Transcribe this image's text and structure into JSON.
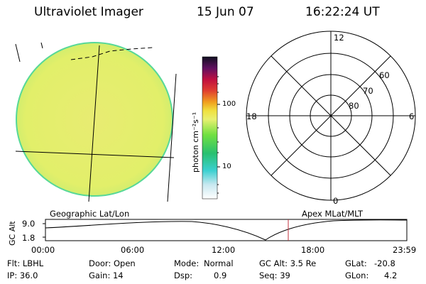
{
  "header": {
    "instrument": "Ultraviolet Imager",
    "date": "15 Jun 07",
    "time": "16:22:24 UT"
  },
  "colorbar": {
    "unit_label": "photon cm⁻²s⁻¹",
    "ticks": [
      "100",
      "10"
    ]
  },
  "polar_plot": {
    "mlt_labels": {
      "top": "12",
      "left": "18",
      "right": "6",
      "bottom": "0"
    },
    "mlat_labels": [
      "60",
      "70",
      "80"
    ]
  },
  "timeline": {
    "left_caption": "Geographic Lat/Lon",
    "right_caption": "Apex MLat/MLT",
    "ylabel": "GC Alt",
    "yticks": [
      "9.0",
      "1.8"
    ],
    "xticks": [
      "00:00",
      "06:00",
      "12:00",
      "18:00",
      "23:59"
    ]
  },
  "status": {
    "filter": "Flt: LBHL",
    "ip": "IP: 36.0",
    "door": "Door: Open",
    "gain": "Gain: 14",
    "mode_label": "Mode:",
    "mode_value": "Normal",
    "dsp_label": "Dsp:",
    "dsp_value": "0.9",
    "gc_alt": "GC Alt: 3.5 Re",
    "seq": "Seq: 39",
    "glat_label": "GLat:",
    "glat_value": "-20.8",
    "glon_label": "GLon:",
    "glon_value": "4.2"
  },
  "colors": {
    "disk_fill": "#e6f06a",
    "disk_edge": "#4fd89a",
    "marker": "#c0303c"
  }
}
